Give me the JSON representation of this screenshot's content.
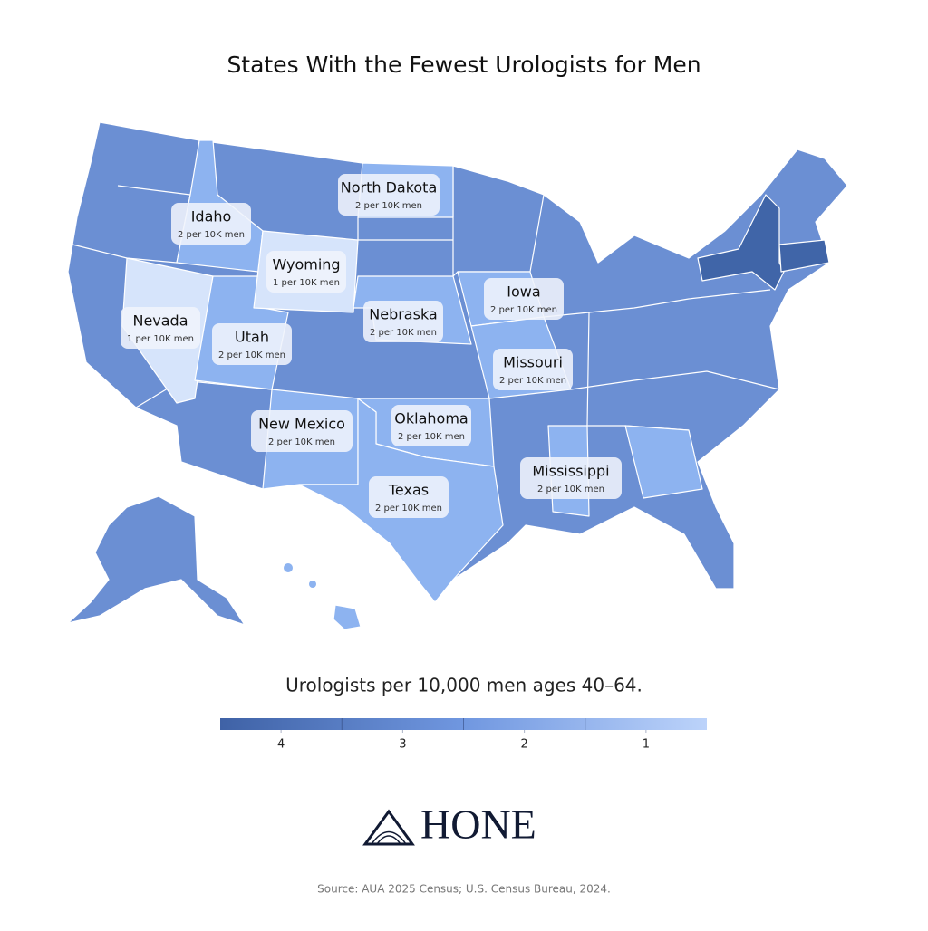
{
  "title": "States With the Fewest Urologists for Men",
  "states": [
    {
      "name": "North Dakota",
      "value": "2 per 10K men"
    },
    {
      "name": "Idaho",
      "value": "2 per 10K men"
    },
    {
      "name": "Wyoming",
      "value": "1 per 10K men"
    },
    {
      "name": "Nevada",
      "value": "1 per 10K men"
    },
    {
      "name": "Utah",
      "value": "2 per 10K men"
    },
    {
      "name": "Nebraska",
      "value": "2 per 10K men"
    },
    {
      "name": "Iowa",
      "value": "2 per 10K men"
    },
    {
      "name": "Missouri",
      "value": "2 per 10K men"
    },
    {
      "name": "New Mexico",
      "value": "2 per 10K men"
    },
    {
      "name": "Oklahoma",
      "value": "2 per 10K men"
    },
    {
      "name": "Texas",
      "value": "2 per 10K men"
    },
    {
      "name": "Mississippi",
      "value": "2 per 10K men"
    }
  ],
  "legend": {
    "title": "Urologists per 10,000 men ages 40–64.",
    "ticks": [
      4,
      3,
      2,
      1
    ]
  },
  "brand": "HONE",
  "source": "Source: AUA 2025 Census; U.S. Census Bureau, 2024."
}
